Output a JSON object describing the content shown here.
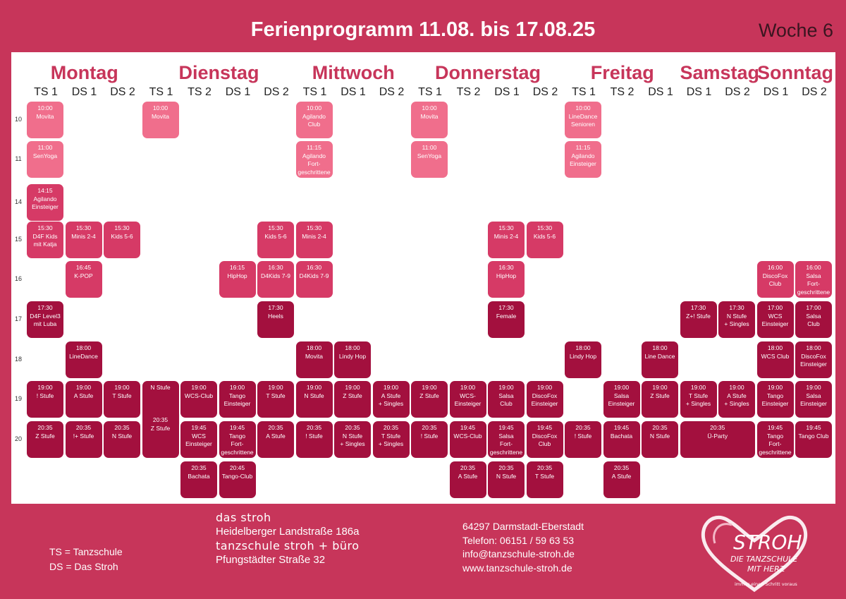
{
  "header": {
    "title": "Ferienprogramm 11.08. bis 17.08.25",
    "week": "Woche 6"
  },
  "colors": {
    "accent": "#c7355a",
    "light": "#f06e8c",
    "mid": "#d63a66",
    "dark": "#a3103e"
  },
  "days": [
    {
      "name": "Montag",
      "columns": [
        "TS 1",
        "DS 1",
        "DS 2"
      ]
    },
    {
      "name": "Dienstag",
      "columns": [
        "TS 1",
        "TS 2",
        "DS 1",
        "DS 2"
      ]
    },
    {
      "name": "Mittwoch",
      "columns": [
        "TS 1",
        "DS 1",
        "DS 2"
      ]
    },
    {
      "name": "Donnerstag",
      "columns": [
        "TS 1",
        "TS 2",
        "DS 1",
        "DS 2"
      ]
    },
    {
      "name": "Freitag",
      "columns": [
        "TS 1",
        "TS 2",
        "DS 1"
      ]
    },
    {
      "name": "Samstag",
      "columns": [
        "DS 1",
        "DS 2"
      ]
    },
    {
      "name": "Sonntag",
      "columns": [
        "DS 1",
        "DS 2"
      ]
    }
  ],
  "hours": [
    "10",
    "11",
    "14",
    "15",
    "16",
    "17",
    "18",
    "19",
    "20"
  ],
  "events": [
    {
      "col": 0,
      "row": 0,
      "shade": "light",
      "lines": [
        "10:00",
        "Movita"
      ]
    },
    {
      "col": 3,
      "row": 0,
      "shade": "light",
      "lines": [
        "10:00",
        "Movita"
      ]
    },
    {
      "col": 7,
      "row": 0,
      "shade": "light",
      "lines": [
        "10:00",
        "Agilando",
        "Club"
      ]
    },
    {
      "col": 10,
      "row": 0,
      "shade": "light",
      "lines": [
        "10:00",
        "Movita"
      ]
    },
    {
      "col": 14,
      "row": 0,
      "shade": "light",
      "lines": [
        "10:00",
        "LineDance",
        "Senioren"
      ]
    },
    {
      "col": 0,
      "row": 1,
      "shade": "light",
      "lines": [
        "11:00",
        "SenYoga"
      ]
    },
    {
      "col": 7,
      "row": 1,
      "shade": "light",
      "lines": [
        "11:15",
        "Agilando",
        "Fort-",
        "geschrittene"
      ]
    },
    {
      "col": 10,
      "row": 1,
      "shade": "light",
      "lines": [
        "11:00",
        "SenYoga"
      ]
    },
    {
      "col": 14,
      "row": 1,
      "shade": "light",
      "lines": [
        "11:15",
        "Agilando",
        "Einsteiger"
      ]
    },
    {
      "col": 0,
      "row": 2,
      "shade": "mid",
      "lines": [
        "14:15",
        "Agilando",
        "Einsteiger"
      ]
    },
    {
      "col": 0,
      "row": 3,
      "shade": "mid",
      "lines": [
        "15:30",
        "D4F Kids",
        "mit Katja"
      ]
    },
    {
      "col": 1,
      "row": 3,
      "shade": "mid",
      "lines": [
        "15:30",
        "Minis 2-4"
      ]
    },
    {
      "col": 2,
      "row": 3,
      "shade": "mid",
      "lines": [
        "15:30",
        "Kids 5-6"
      ]
    },
    {
      "col": 6,
      "row": 3,
      "shade": "mid",
      "lines": [
        "15:30",
        "Kids 5-6"
      ]
    },
    {
      "col": 7,
      "row": 3,
      "shade": "mid",
      "lines": [
        "15:30",
        "Minis 2-4"
      ]
    },
    {
      "col": 12,
      "row": 3,
      "shade": "mid",
      "lines": [
        "15:30",
        "Minis 2-4"
      ]
    },
    {
      "col": 13,
      "row": 3,
      "shade": "mid",
      "lines": [
        "15:30",
        "Kids 5-6"
      ]
    },
    {
      "col": 1,
      "row": 4,
      "shade": "mid",
      "lines": [
        "16:45",
        "K-POP"
      ]
    },
    {
      "col": 5,
      "row": 4,
      "shade": "mid",
      "lines": [
        "16:15",
        "HipHop"
      ]
    },
    {
      "col": 6,
      "row": 4,
      "shade": "mid",
      "lines": [
        "16:30",
        "D4Kids 7-9"
      ]
    },
    {
      "col": 7,
      "row": 4,
      "shade": "mid",
      "lines": [
        "16:30",
        "D4Kids 7-9"
      ]
    },
    {
      "col": 12,
      "row": 4,
      "shade": "mid",
      "lines": [
        "16:30",
        "HipHop"
      ]
    },
    {
      "col": 19,
      "row": 4,
      "shade": "mid",
      "lines": [
        "16:00",
        "DiscoFox",
        "Club"
      ]
    },
    {
      "col": 20,
      "row": 4,
      "shade": "mid",
      "lines": [
        "16:00",
        "Salsa",
        "Fort-",
        "geschrittene"
      ]
    },
    {
      "col": 0,
      "row": 5,
      "shade": "dark",
      "lines": [
        "17:30",
        "D4F Level3",
        "mit Luba"
      ]
    },
    {
      "col": 6,
      "row": 5,
      "shade": "dark",
      "lines": [
        "17:30",
        "Heels"
      ]
    },
    {
      "col": 12,
      "row": 5,
      "shade": "dark",
      "lines": [
        "17:30",
        "Female"
      ]
    },
    {
      "col": 17,
      "row": 5,
      "shade": "dark",
      "lines": [
        "17:30",
        "Z+! Stufe"
      ]
    },
    {
      "col": 18,
      "row": 5,
      "shade": "dark",
      "lines": [
        "17:30",
        "N Stufe",
        "+ Singles"
      ]
    },
    {
      "col": 19,
      "row": 5,
      "shade": "dark",
      "lines": [
        "17:00",
        "WCS",
        "Einsteiger"
      ]
    },
    {
      "col": 20,
      "row": 5,
      "shade": "dark",
      "lines": [
        "17:00",
        "Salsa",
        "Club"
      ]
    },
    {
      "col": 1,
      "row": 6,
      "shade": "dark",
      "lines": [
        "18:00",
        "LineDance"
      ]
    },
    {
      "col": 7,
      "row": 6,
      "shade": "dark",
      "lines": [
        "18:00",
        "Movita"
      ]
    },
    {
      "col": 8,
      "row": 6,
      "shade": "dark",
      "lines": [
        "18:00",
        "Lindy Hop"
      ]
    },
    {
      "col": 14,
      "row": 6,
      "shade": "dark",
      "lines": [
        "18:00",
        "Lindy Hop"
      ]
    },
    {
      "col": 16,
      "row": 6,
      "shade": "dark",
      "lines": [
        "18:00",
        "Line Dance"
      ]
    },
    {
      "col": 19,
      "row": 6,
      "shade": "dark",
      "lines": [
        "18:00",
        "WCS Club"
      ]
    },
    {
      "col": 20,
      "row": 6,
      "shade": "dark",
      "lines": [
        "18:00",
        "DiscoFox",
        "Einsteiger"
      ]
    },
    {
      "col": 0,
      "row": 7,
      "shade": "dark",
      "lines": [
        "19:00",
        "! Stufe"
      ]
    },
    {
      "col": 1,
      "row": 7,
      "shade": "dark",
      "lines": [
        "19:00",
        "A Stufe"
      ]
    },
    {
      "col": 2,
      "row": 7,
      "shade": "dark",
      "lines": [
        "19:00",
        "T Stufe"
      ]
    },
    {
      "col": 3,
      "row": 7,
      "rows": 2,
      "shade": "dark",
      "lines": [
        "N Stufe",
        "",
        "",
        "",
        "20:35",
        "Z Stufe"
      ]
    },
    {
      "col": 4,
      "row": 7,
      "shade": "dark",
      "lines": [
        "19:00",
        "WCS-Club"
      ]
    },
    {
      "col": 5,
      "row": 7,
      "shade": "dark",
      "lines": [
        "19:00",
        "Tango",
        "Einsteiger"
      ]
    },
    {
      "col": 6,
      "row": 7,
      "shade": "dark",
      "lines": [
        "19:00",
        "T Stufe"
      ]
    },
    {
      "col": 7,
      "row": 7,
      "shade": "dark",
      "lines": [
        "19:00",
        "N Stufe"
      ]
    },
    {
      "col": 8,
      "row": 7,
      "shade": "dark",
      "lines": [
        "19:00",
        "Z Stufe"
      ]
    },
    {
      "col": 9,
      "row": 7,
      "shade": "dark",
      "lines": [
        "19:00",
        "A Stufe",
        "+ Singles"
      ]
    },
    {
      "col": 10,
      "row": 7,
      "shade": "dark",
      "lines": [
        "19:00",
        "Z Stufe"
      ]
    },
    {
      "col": 11,
      "row": 7,
      "shade": "dark",
      "lines": [
        "19:00",
        "WCS-",
        "Einsteiger"
      ]
    },
    {
      "col": 12,
      "row": 7,
      "shade": "dark",
      "lines": [
        "19:00",
        "Salsa",
        "Club"
      ]
    },
    {
      "col": 13,
      "row": 7,
      "shade": "dark",
      "lines": [
        "19:00",
        "DiscoFox",
        "Einsteiger"
      ]
    },
    {
      "col": 15,
      "row": 7,
      "shade": "dark",
      "lines": [
        "19:00",
        "Salsa",
        "Einsteiger"
      ]
    },
    {
      "col": 16,
      "row": 7,
      "shade": "dark",
      "lines": [
        "19:00",
        "Z Stufe"
      ]
    },
    {
      "col": 17,
      "row": 7,
      "shade": "dark",
      "lines": [
        "19:00",
        "T Stufe",
        "+ Singles"
      ]
    },
    {
      "col": 18,
      "row": 7,
      "shade": "dark",
      "lines": [
        "19:00",
        "A Stufe",
        "+ Singles"
      ]
    },
    {
      "col": 19,
      "row": 7,
      "shade": "dark",
      "lines": [
        "19:00",
        "Tango",
        "Einsteiger"
      ]
    },
    {
      "col": 20,
      "row": 7,
      "shade": "dark",
      "lines": [
        "19:00",
        "Salsa",
        "Einsteiger"
      ]
    },
    {
      "col": 0,
      "row": 8,
      "shade": "dark",
      "lines": [
        "20:35",
        "Z Stufe"
      ]
    },
    {
      "col": 1,
      "row": 8,
      "shade": "dark",
      "lines": [
        "20:35",
        "!+ Stufe"
      ]
    },
    {
      "col": 2,
      "row": 8,
      "shade": "dark",
      "lines": [
        "20:35",
        "N Stufe"
      ]
    },
    {
      "col": 4,
      "row": 8,
      "shade": "dark",
      "lines": [
        "19:45",
        "WCS",
        "Einsteiger"
      ]
    },
    {
      "col": 5,
      "row": 8,
      "shade": "dark",
      "lines": [
        "19:45",
        "Tango",
        "Fort-",
        "geschrittene"
      ]
    },
    {
      "col": 6,
      "row": 8,
      "shade": "dark",
      "lines": [
        "20:35",
        "A Stufe"
      ]
    },
    {
      "col": 7,
      "row": 8,
      "shade": "dark",
      "lines": [
        "20:35",
        "! Stufe"
      ]
    },
    {
      "col": 8,
      "row": 8,
      "shade": "dark",
      "lines": [
        "20:35",
        "N Stufe",
        "+ Singles"
      ]
    },
    {
      "col": 9,
      "row": 8,
      "shade": "dark",
      "lines": [
        "20:35",
        "T Stufe",
        "+ Singles"
      ]
    },
    {
      "col": 10,
      "row": 8,
      "shade": "dark",
      "lines": [
        "20:35",
        "! Stufe"
      ]
    },
    {
      "col": 11,
      "row": 8,
      "shade": "dark",
      "lines": [
        "19:45",
        "WCS-Club"
      ]
    },
    {
      "col": 12,
      "row": 8,
      "shade": "dark",
      "lines": [
        "19:45",
        "Salsa",
        "Fort-",
        "geschrittene"
      ]
    },
    {
      "col": 13,
      "row": 8,
      "shade": "dark",
      "lines": [
        "19:45",
        "DiscoFox",
        "Club"
      ]
    },
    {
      "col": 14,
      "row": 8,
      "shade": "dark",
      "lines": [
        "20:35",
        "! Stufe"
      ]
    },
    {
      "col": 15,
      "row": 8,
      "shade": "dark",
      "lines": [
        "19:45",
        "Bachata"
      ]
    },
    {
      "col": 16,
      "row": 8,
      "shade": "dark",
      "lines": [
        "20:35",
        "N Stufe"
      ]
    },
    {
      "col": 17,
      "row": 8,
      "cols": 2,
      "shade": "dark",
      "lines": [
        "20:35",
        "Ü-Party"
      ]
    },
    {
      "col": 19,
      "row": 8,
      "shade": "dark",
      "lines": [
        "19:45",
        "Tango",
        "Fort-",
        "geschrittene"
      ]
    },
    {
      "col": 20,
      "row": 8,
      "shade": "dark",
      "lines": [
        "19:45",
        "Tango Club"
      ]
    },
    {
      "col": 4,
      "row": 9,
      "shade": "dark",
      "lines": [
        "20:35",
        "Bachata"
      ]
    },
    {
      "col": 5,
      "row": 9,
      "shade": "dark",
      "lines": [
        "20:45",
        "Tango-Club"
      ]
    },
    {
      "col": 11,
      "row": 9,
      "shade": "dark",
      "lines": [
        "20:35",
        "A Stufe"
      ]
    },
    {
      "col": 12,
      "row": 9,
      "shade": "dark",
      "lines": [
        "20:35",
        "N Stufe"
      ]
    },
    {
      "col": 13,
      "row": 9,
      "shade": "dark",
      "lines": [
        "20:35",
        "T Stufe"
      ]
    },
    {
      "col": 15,
      "row": 9,
      "shade": "dark",
      "lines": [
        "20:35",
        "A Stufe"
      ]
    }
  ],
  "footer": {
    "legend": [
      "TS = Tanzschule",
      "DS = Das Stroh"
    ],
    "addresses": [
      "das stroh",
      "Heidelberger Landstraße 186a",
      "tanzschule stroh + büro",
      "Pfungstädter Straße 32"
    ],
    "contact": [
      "64297 Darmstadt-Eberstadt",
      "Telefon: 06151 / 59 63 53",
      "info@tanzschule-stroh.de",
      "www.tanzschule-stroh.de"
    ],
    "logo": {
      "name": "STROH",
      "line1": "DIE TANZSCHULE",
      "line2": "MIT HERZ",
      "slogan": "immer einen Schritt voraus"
    }
  }
}
